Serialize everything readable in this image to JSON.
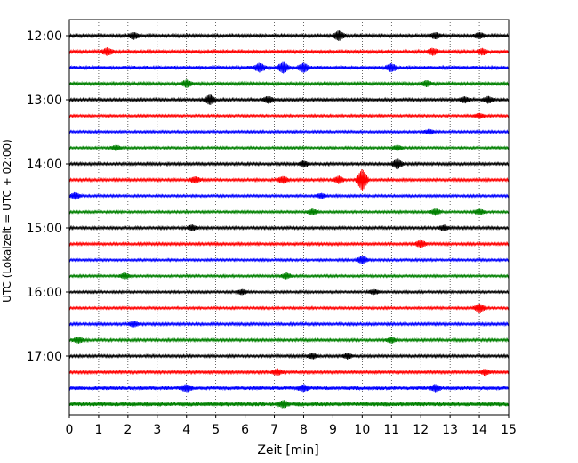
{
  "chart_data": {
    "type": "line",
    "subtype": "seismic-helicorder",
    "xlabel": "Zeit  [min]",
    "ylabel": "UTC (Lokalzeit = UTC + 02:00)",
    "xlim": [
      0,
      15
    ],
    "x_ticks": [
      0,
      1,
      2,
      3,
      4,
      5,
      6,
      7,
      8,
      9,
      10,
      11,
      12,
      13,
      14,
      15
    ],
    "x_grid": "dotted vertical gridlines at every minute",
    "y_tick_labels": [
      "12:00",
      "13:00",
      "14:00",
      "15:00",
      "16:00",
      "17:00"
    ],
    "trace_interval_minutes": 15,
    "trace_colors": [
      "#000000",
      "#ff0000",
      "#0000ff",
      "#008000"
    ],
    "traces": [
      {
        "start": "12:00",
        "color": "#000000",
        "amplitude": 1.0,
        "events": [
          {
            "x": 2.2,
            "amp": 2.0
          },
          {
            "x": 9.2,
            "amp": 3.0
          },
          {
            "x": 12.5,
            "amp": 1.8
          },
          {
            "x": 14.0,
            "amp": 1.8
          }
        ]
      },
      {
        "start": "12:15",
        "color": "#ff0000",
        "amplitude": 1.1,
        "events": [
          {
            "x": 1.3,
            "amp": 2.2
          },
          {
            "x": 12.4,
            "amp": 2.0
          },
          {
            "x": 14.1,
            "amp": 1.8
          }
        ]
      },
      {
        "start": "12:30",
        "color": "#0000ff",
        "amplitude": 1.2,
        "events": [
          {
            "x": 6.5,
            "amp": 2.5
          },
          {
            "x": 7.3,
            "amp": 3.2
          },
          {
            "x": 8.0,
            "amp": 2.8
          },
          {
            "x": 11.0,
            "amp": 2.2
          }
        ]
      },
      {
        "start": "12:45",
        "color": "#008000",
        "amplitude": 1.0,
        "events": [
          {
            "x": 4.0,
            "amp": 2.2
          },
          {
            "x": 12.2,
            "amp": 1.8
          }
        ]
      },
      {
        "start": "13:00",
        "color": "#000000",
        "amplitude": 1.0,
        "events": [
          {
            "x": 4.8,
            "amp": 3.0
          },
          {
            "x": 6.8,
            "amp": 2.0
          },
          {
            "x": 13.5,
            "amp": 1.8
          },
          {
            "x": 14.3,
            "amp": 2.0
          }
        ]
      },
      {
        "start": "13:15",
        "color": "#ff0000",
        "amplitude": 0.8,
        "events": [
          {
            "x": 14.0,
            "amp": 1.5
          }
        ]
      },
      {
        "start": "13:30",
        "color": "#0000ff",
        "amplitude": 0.8,
        "events": [
          {
            "x": 12.3,
            "amp": 1.5
          }
        ]
      },
      {
        "start": "13:45",
        "color": "#008000",
        "amplitude": 0.8,
        "events": [
          {
            "x": 1.6,
            "amp": 1.6
          },
          {
            "x": 11.2,
            "amp": 1.6
          }
        ]
      },
      {
        "start": "14:00",
        "color": "#000000",
        "amplitude": 0.9,
        "events": [
          {
            "x": 8.0,
            "amp": 1.8
          },
          {
            "x": 11.2,
            "amp": 3.0
          }
        ]
      },
      {
        "start": "14:15",
        "color": "#ff0000",
        "amplitude": 0.9,
        "events": [
          {
            "x": 4.3,
            "amp": 2.0
          },
          {
            "x": 7.3,
            "amp": 2.2
          },
          {
            "x": 9.2,
            "amp": 2.2
          },
          {
            "x": 10.0,
            "amp": 7.0
          }
        ]
      },
      {
        "start": "14:30",
        "color": "#0000ff",
        "amplitude": 0.8,
        "events": [
          {
            "x": 0.2,
            "amp": 2.0
          },
          {
            "x": 8.6,
            "amp": 1.5
          }
        ]
      },
      {
        "start": "14:45",
        "color": "#008000",
        "amplitude": 0.8,
        "events": [
          {
            "x": 8.3,
            "amp": 1.8
          },
          {
            "x": 12.5,
            "amp": 2.0
          },
          {
            "x": 14.0,
            "amp": 1.8
          }
        ]
      },
      {
        "start": "15:00",
        "color": "#000000",
        "amplitude": 0.9,
        "events": [
          {
            "x": 4.2,
            "amp": 1.6
          },
          {
            "x": 12.8,
            "amp": 1.6
          }
        ]
      },
      {
        "start": "15:15",
        "color": "#ff0000",
        "amplitude": 0.9,
        "events": [
          {
            "x": 12.0,
            "amp": 2.2
          }
        ]
      },
      {
        "start": "15:30",
        "color": "#0000ff",
        "amplitude": 0.8,
        "events": [
          {
            "x": 10.0,
            "amp": 2.5
          }
        ]
      },
      {
        "start": "15:45",
        "color": "#008000",
        "amplitude": 0.8,
        "events": [
          {
            "x": 1.9,
            "amp": 1.8
          },
          {
            "x": 7.4,
            "amp": 1.8
          }
        ]
      },
      {
        "start": "16:00",
        "color": "#000000",
        "amplitude": 0.8,
        "events": [
          {
            "x": 5.9,
            "amp": 1.6
          },
          {
            "x": 10.4,
            "amp": 1.5
          }
        ]
      },
      {
        "start": "16:15",
        "color": "#ff0000",
        "amplitude": 0.8,
        "events": [
          {
            "x": 14.0,
            "amp": 2.8
          }
        ]
      },
      {
        "start": "16:30",
        "color": "#0000ff",
        "amplitude": 0.9,
        "events": [
          {
            "x": 2.2,
            "amp": 1.6
          }
        ]
      },
      {
        "start": "16:45",
        "color": "#008000",
        "amplitude": 0.9,
        "events": [
          {
            "x": 0.3,
            "amp": 1.8
          },
          {
            "x": 11.0,
            "amp": 1.6
          }
        ]
      },
      {
        "start": "17:00",
        "color": "#000000",
        "amplitude": 0.9,
        "events": [
          {
            "x": 8.3,
            "amp": 1.6
          },
          {
            "x": 9.5,
            "amp": 1.6
          }
        ]
      },
      {
        "start": "17:15",
        "color": "#ff0000",
        "amplitude": 1.0,
        "events": [
          {
            "x": 7.1,
            "amp": 1.8
          },
          {
            "x": 14.2,
            "amp": 1.8
          }
        ]
      },
      {
        "start": "17:30",
        "color": "#0000ff",
        "amplitude": 1.3,
        "events": [
          {
            "x": 4.0,
            "amp": 1.8
          },
          {
            "x": 8.0,
            "amp": 1.8
          },
          {
            "x": 12.5,
            "amp": 1.8
          }
        ]
      },
      {
        "start": "17:45",
        "color": "#008000",
        "amplitude": 1.5,
        "events": [
          {
            "x": 7.3,
            "amp": 1.8
          }
        ]
      }
    ]
  }
}
